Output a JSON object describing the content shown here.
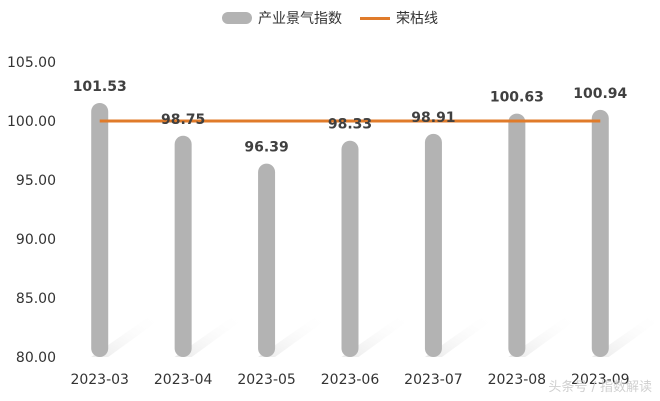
{
  "chart_data": {
    "type": "bar",
    "categories": [
      "2023-03",
      "2023-04",
      "2023-05",
      "2023-06",
      "2023-07",
      "2023-08",
      "2023-09"
    ],
    "series": [
      {
        "name": "产业景气指数",
        "type": "bar",
        "values": [
          101.53,
          98.75,
          96.39,
          98.33,
          98.91,
          100.63,
          100.94
        ],
        "data_labels": [
          "101.53",
          "98.75",
          "96.39",
          "98.33",
          "98.91",
          "100.63",
          "100.94"
        ],
        "color": "#b3b3b3"
      },
      {
        "name": "荣枯线",
        "type": "line",
        "values": [
          100,
          100,
          100,
          100,
          100,
          100,
          100
        ],
        "color": "#e07b2a"
      }
    ],
    "ylim": [
      80,
      105
    ],
    "yticks": [
      "80.00",
      "85.00",
      "90.00",
      "95.00",
      "100.00",
      "105.00"
    ],
    "title": "",
    "xlabel": "",
    "ylabel": "",
    "grid": false,
    "legend_position": "top-center"
  },
  "watermark": "头条号 / 指数解读"
}
